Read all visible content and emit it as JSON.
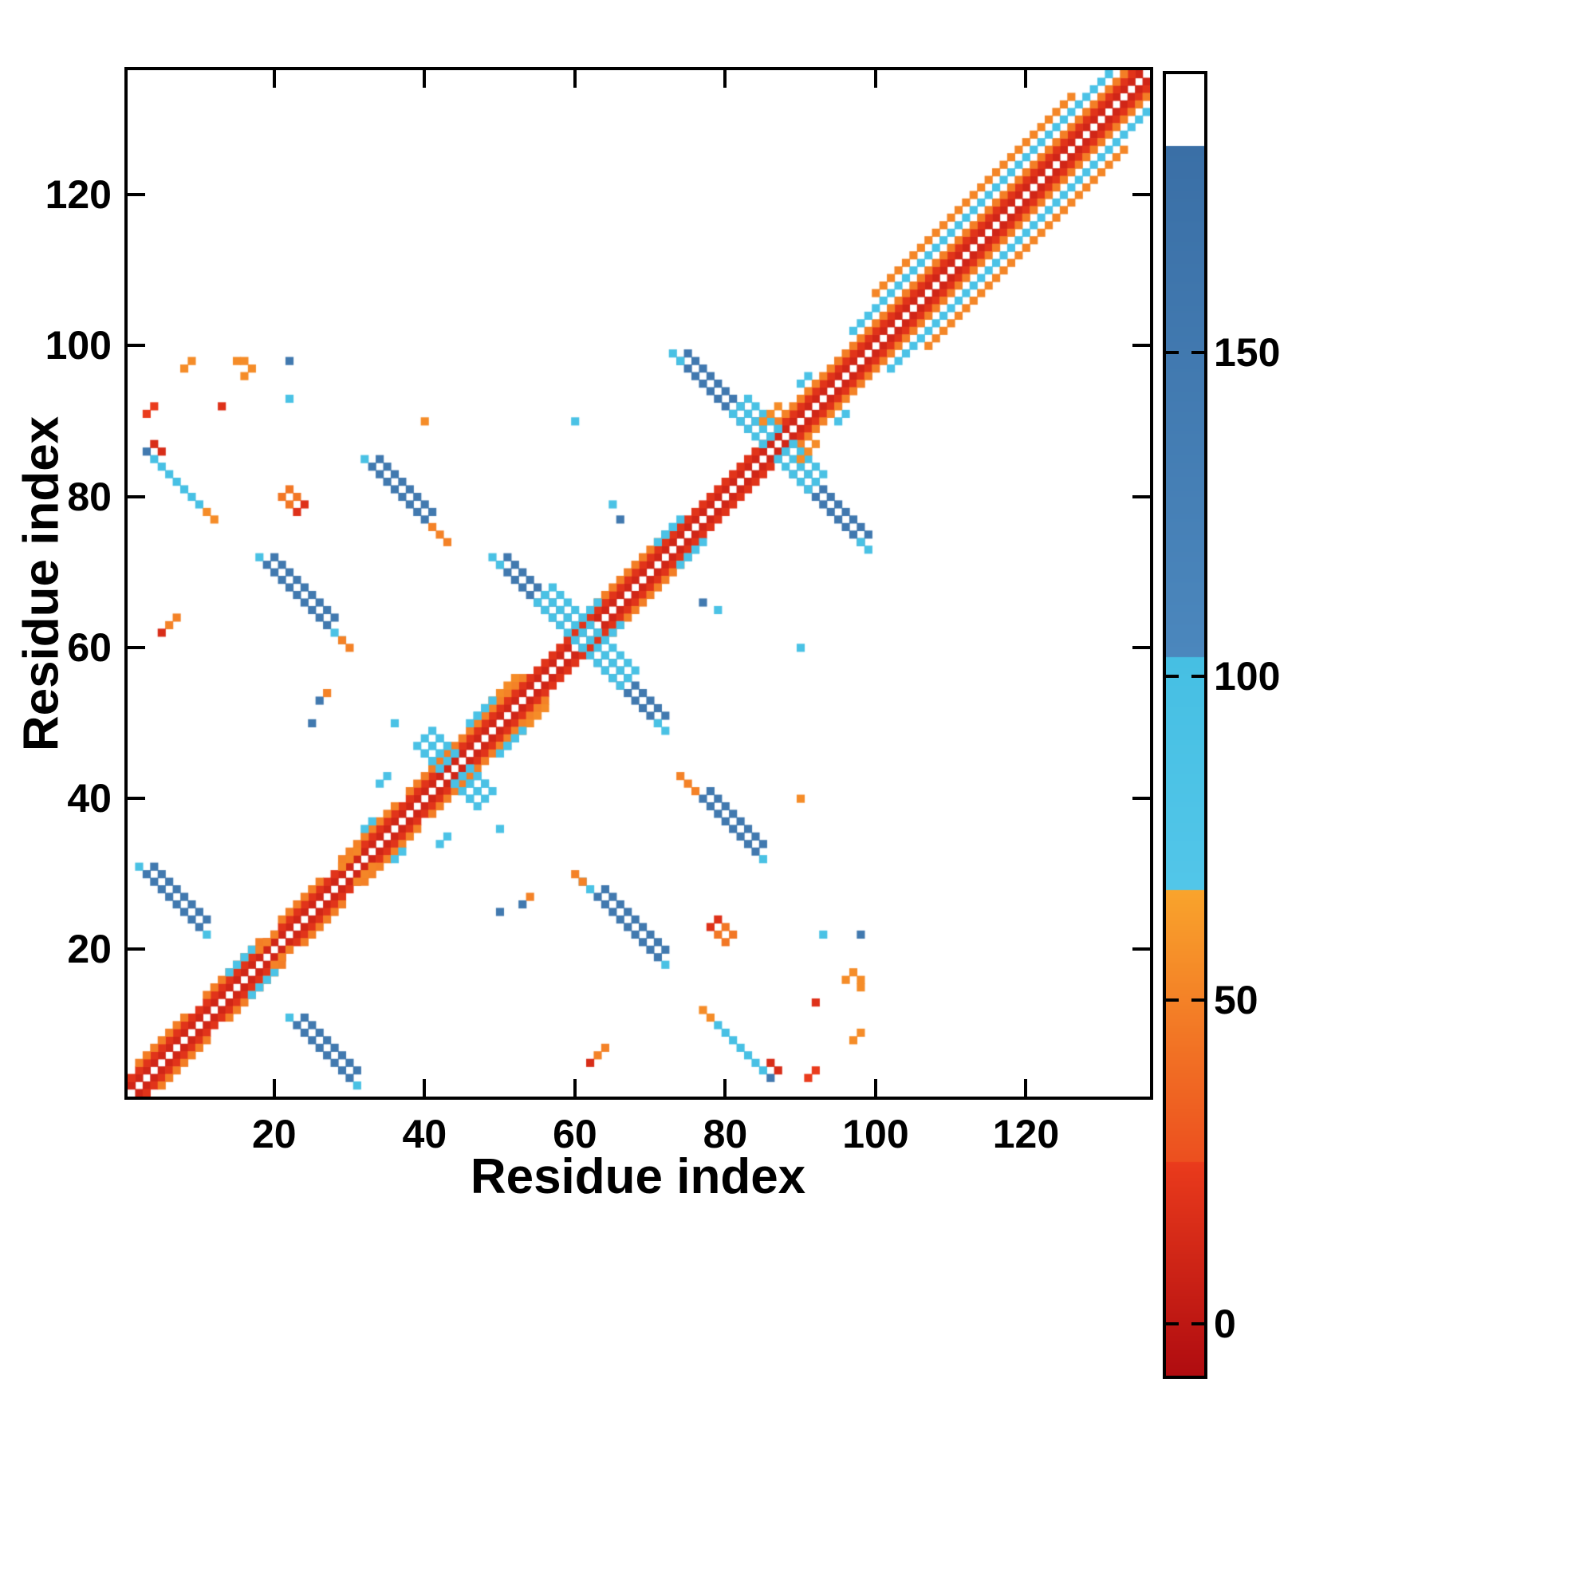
{
  "axes": {
    "xlabel": "Residue index",
    "ylabel": "Residue index",
    "x_ticks": [
      20,
      40,
      60,
      80,
      100,
      120
    ],
    "y_ticks": [
      20,
      40,
      60,
      80,
      100,
      120
    ],
    "residue_min": 1,
    "residue_max": 136
  },
  "colorbar": {
    "ticks": [
      0,
      50,
      100,
      150
    ],
    "vmin": -8,
    "vmax": 193
  },
  "chart_data": {
    "type": "heatmap",
    "title": "",
    "xlabel": "Residue index",
    "ylabel": "Residue index",
    "xlim": [
      1,
      136
    ],
    "ylim": [
      1,
      136
    ],
    "n_residues": 136,
    "symmetric": true,
    "background_value_color": "#ffffff",
    "colormap": {
      "bands": [
        {
          "lo": -8,
          "hi": 25,
          "from": "#b00c10",
          "to": "#ea3b1c"
        },
        {
          "lo": 25,
          "hi": 67,
          "from": "#ec4f1f",
          "to": "#f9a42c"
        },
        {
          "lo": 67,
          "hi": 103,
          "from": "#52c6e9",
          "to": "#46bfe3"
        },
        {
          "lo": 103,
          "hi": 182,
          "from": "#4b87bd",
          "to": "#3a6fa6"
        },
        {
          "lo": 182,
          "hi": 300,
          "from": "#ffffff",
          "to": "#ffffff"
        }
      ]
    },
    "segments_format": [
      "i_start",
      "j_start",
      "n_cells",
      "di",
      "dj",
      "thickness",
      "value"
    ],
    "segments": [
      [
        1,
        2,
        135,
        1,
        1,
        1,
        10
      ],
      [
        1,
        3,
        134,
        1,
        1,
        1,
        20
      ],
      [
        2,
        5,
        7,
        1,
        1,
        1,
        48
      ],
      [
        11,
        14,
        8,
        1,
        1,
        1,
        48
      ],
      [
        21,
        24,
        6,
        1,
        1,
        1,
        48
      ],
      [
        29,
        32,
        8,
        1,
        1,
        1,
        50
      ],
      [
        38,
        41,
        10,
        1,
        1,
        1,
        48
      ],
      [
        47,
        50,
        7,
        1,
        1,
        1,
        50
      ],
      [
        62,
        65,
        11,
        1,
        1,
        1,
        48
      ],
      [
        87,
        90,
        9,
        1,
        1,
        1,
        50
      ],
      [
        95,
        98,
        39,
        1,
        1,
        1,
        48
      ],
      [
        48,
        52,
        5,
        1,
        1,
        1,
        55
      ],
      [
        97,
        102,
        35,
        1,
        1,
        1,
        88
      ],
      [
        100,
        107,
        27,
        1,
        1,
        1,
        52
      ],
      [
        14,
        17,
        4,
        1,
        1,
        1,
        85
      ],
      [
        18,
        20,
        3,
        1,
        1,
        1,
        50
      ],
      [
        29,
        31,
        3,
        1,
        1,
        1,
        52
      ],
      [
        32,
        36,
        2,
        1,
        1,
        1,
        85
      ],
      [
        61,
        64,
        3,
        1,
        1,
        1,
        88
      ],
      [
        71,
        74,
        3,
        1,
        1,
        2,
        88
      ],
      [
        90,
        95,
        2,
        1,
        1,
        1,
        88
      ],
      [
        46,
        50,
        3,
        1,
        1,
        2,
        88
      ],
      [
        39,
        47,
        8,
        1,
        -1,
        3,
        92
      ],
      [
        50,
        71,
        9,
        1,
        -1,
        2,
        150
      ],
      [
        55,
        66,
        7,
        1,
        -1,
        3,
        95
      ],
      [
        49,
        72,
        2,
        1,
        -1,
        1,
        95
      ],
      [
        74,
        98,
        10,
        1,
        -1,
        2,
        152
      ],
      [
        81,
        91,
        7,
        1,
        -1,
        3,
        95
      ],
      [
        73,
        99,
        2,
        1,
        -1,
        1,
        95
      ],
      [
        85,
        90,
        3,
        1,
        1,
        1,
        55
      ],
      [
        3,
        30,
        8,
        1,
        -1,
        2,
        150
      ],
      [
        2,
        31,
        1,
        1,
        1,
        1,
        95
      ],
      [
        11,
        22,
        1,
        1,
        1,
        1,
        95
      ],
      [
        19,
        71,
        9,
        1,
        -1,
        2,
        150
      ],
      [
        18,
        72,
        1,
        1,
        1,
        1,
        95
      ],
      [
        28,
        62,
        2,
        1,
        -1,
        1,
        90
      ],
      [
        29,
        61,
        2,
        1,
        -1,
        1,
        50
      ],
      [
        33,
        84,
        8,
        1,
        -1,
        2,
        150
      ],
      [
        32,
        85,
        1,
        1,
        1,
        1,
        95
      ],
      [
        41,
        76,
        3,
        1,
        -1,
        1,
        50
      ],
      [
        4,
        85,
        7,
        1,
        -1,
        1,
        100
      ],
      [
        3,
        86,
        1,
        1,
        1,
        1,
        150
      ],
      [
        11,
        78,
        2,
        1,
        -1,
        1,
        55
      ],
      [
        6,
        63,
        2,
        1,
        1,
        1,
        50
      ],
      [
        5,
        62,
        1,
        1,
        1,
        1,
        15
      ],
      [
        3,
        91,
        2,
        1,
        1,
        1,
        25
      ],
      [
        4,
        87,
        2,
        1,
        -1,
        1,
        15
      ],
      [
        8,
        97,
        2,
        1,
        1,
        1,
        55
      ],
      [
        15,
        98,
        2,
        1,
        0,
        1,
        55
      ],
      [
        16,
        96,
        2,
        1,
        1,
        1,
        55
      ],
      [
        13,
        92,
        1,
        1,
        1,
        1,
        18
      ],
      [
        22,
        93,
        1,
        1,
        1,
        1,
        90
      ],
      [
        22,
        98,
        1,
        1,
        1,
        1,
        150
      ],
      [
        21,
        80,
        2,
        1,
        -1,
        2,
        45
      ],
      [
        23,
        78,
        2,
        1,
        1,
        1,
        18
      ],
      [
        26,
        53,
        1,
        1,
        1,
        1,
        150
      ],
      [
        27,
        54,
        1,
        1,
        1,
        1,
        50
      ],
      [
        25,
        50,
        1,
        1,
        1,
        1,
        150
      ],
      [
        36,
        50,
        1,
        1,
        1,
        1,
        90
      ],
      [
        34,
        42,
        2,
        1,
        1,
        1,
        88
      ],
      [
        40,
        90,
        1,
        1,
        1,
        1,
        55
      ],
      [
        60,
        90,
        1,
        1,
        1,
        1,
        90
      ],
      [
        65,
        79,
        1,
        1,
        1,
        1,
        90
      ],
      [
        66,
        77,
        1,
        1,
        1,
        1,
        150
      ]
    ]
  }
}
